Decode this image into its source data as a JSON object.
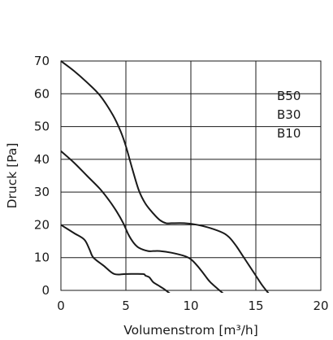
{
  "chart_data": {
    "type": "line",
    "xlabel": "Volumenstrom [m³/h]",
    "ylabel": "Druck [Pa]",
    "xlim": [
      0,
      20
    ],
    "ylim": [
      0,
      70
    ],
    "x_ticks": [
      "0",
      "5",
      "10",
      "15",
      "20"
    ],
    "y_ticks": [
      "0",
      "10",
      "20",
      "30",
      "40",
      "50",
      "60",
      "70"
    ],
    "grid": true,
    "legend": [
      "B50",
      "B30",
      "B10"
    ],
    "legend_position": "top-right",
    "series": [
      {
        "name": "B50",
        "points": [
          [
            0,
            70
          ],
          [
            1,
            67
          ],
          [
            2,
            63.5
          ],
          [
            3,
            59.5
          ],
          [
            4,
            53.5
          ],
          [
            4.6,
            48.5
          ],
          [
            5,
            44
          ],
          [
            5.5,
            37
          ],
          [
            6,
            30.5
          ],
          [
            6.5,
            26.5
          ],
          [
            7.1,
            23.5
          ],
          [
            7.6,
            21.5
          ],
          [
            8.1,
            20.5
          ],
          [
            8.5,
            20.5
          ],
          [
            9.5,
            20.5
          ],
          [
            10.5,
            20
          ],
          [
            11.5,
            19
          ],
          [
            12.5,
            17.5
          ],
          [
            13,
            16
          ],
          [
            13.5,
            13.5
          ],
          [
            14,
            10.5
          ],
          [
            14.5,
            7.5
          ],
          [
            15,
            4.5
          ],
          [
            15.5,
            1.5
          ],
          [
            16,
            -1
          ]
        ]
      },
      {
        "name": "B30",
        "points": [
          [
            0,
            42.5
          ],
          [
            1,
            39
          ],
          [
            2,
            35
          ],
          [
            3,
            31
          ],
          [
            3.7,
            27.5
          ],
          [
            4.3,
            24
          ],
          [
            4.8,
            20.5
          ],
          [
            5.2,
            17
          ],
          [
            5.6,
            14.5
          ],
          [
            6,
            13
          ],
          [
            6.7,
            12
          ],
          [
            7.1,
            12
          ],
          [
            7.6,
            12
          ],
          [
            8.5,
            11.5
          ],
          [
            9.5,
            10.5
          ],
          [
            10,
            9.5
          ],
          [
            10.5,
            7.5
          ],
          [
            11,
            5
          ],
          [
            11.5,
            2.5
          ],
          [
            12.5,
            -1
          ]
        ]
      },
      {
        "name": "B10",
        "points": [
          [
            0,
            20
          ],
          [
            1,
            17.5
          ],
          [
            1.8,
            15.5
          ],
          [
            2.2,
            12.5
          ],
          [
            2.5,
            10
          ],
          [
            3.3,
            7.5
          ],
          [
            4.1,
            5
          ],
          [
            5,
            5
          ],
          [
            6.3,
            5
          ],
          [
            6.5,
            4.5
          ],
          [
            6.8,
            4
          ],
          [
            7.1,
            2.5
          ],
          [
            7.5,
            1.5
          ],
          [
            7.9,
            0.5
          ],
          [
            8.4,
            -1
          ]
        ]
      }
    ]
  }
}
